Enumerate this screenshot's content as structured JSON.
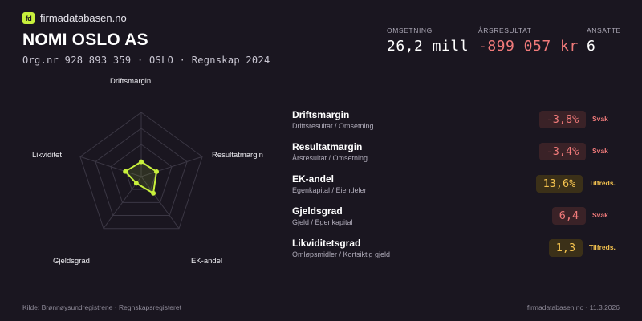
{
  "brand": {
    "logo_text": "fd",
    "name": "firmadatabasen.no",
    "accent": "#c8f03c"
  },
  "company": {
    "name": "NOMI OSLO AS",
    "meta": "Org.nr 928 893 359  ·  OSLO  ·  Regnskap 2024"
  },
  "kpis": [
    {
      "label": "OMSETNING",
      "value": "26,2 mill",
      "negative": false
    },
    {
      "label": "ÅRSRESULTAT",
      "value": "-899 057 kr",
      "negative": true
    },
    {
      "label": "ANSATTE",
      "value": "6",
      "negative": false
    }
  ],
  "chart_data": {
    "type": "radar",
    "axes": [
      "Driftsmargin",
      "Resultatmargin",
      "EK-andel",
      "Gjeldsgrad",
      "Likviditet"
    ],
    "scores": [
      0.23,
      0.25,
      0.32,
      0.13,
      0.26
    ],
    "rings": 4,
    "grid": true,
    "colors": {
      "series": "#c8f03c",
      "grid": "#3b3744"
    }
  },
  "metrics": [
    {
      "name": "Driftsmargin",
      "formula": "Driftsresultat / Omsetning",
      "value": "-3,8%",
      "status": "Svak",
      "level": "bad"
    },
    {
      "name": "Resultatmargin",
      "formula": "Årsresultat / Omsetning",
      "value": "-3,4%",
      "status": "Svak",
      "level": "bad"
    },
    {
      "name": "EK-andel",
      "formula": "Egenkapital / Eiendeler",
      "value": "13,6%",
      "status": "Tilfreds.",
      "level": "ok"
    },
    {
      "name": "Gjeldsgrad",
      "formula": "Gjeld / Egenkapital",
      "value": "6,4",
      "status": "Svak",
      "level": "bad"
    },
    {
      "name": "Likviditetsgrad",
      "formula": "Omløpsmidler / Kortsiktig gjeld",
      "value": "1,3",
      "status": "Tilfreds.",
      "level": "ok"
    }
  ],
  "status_colors": {
    "bad": "#f07a7a",
    "ok": "#f2c14e"
  },
  "footer": {
    "source": "Kilde: Brønnøysundregistrene · Regnskapsregisteret",
    "site": "firmadatabasen.no · 11.3.2026"
  }
}
